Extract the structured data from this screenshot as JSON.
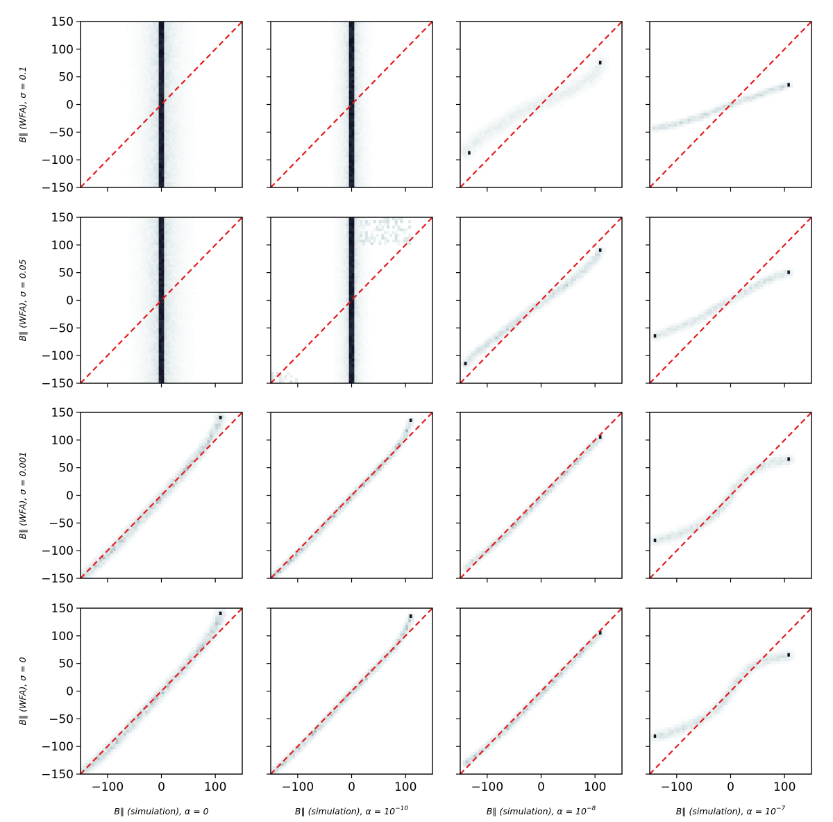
{
  "chart_data": {
    "type": "heatmap",
    "description_grid": "4x4 two-dimensional histograms with identity reference line",
    "x_range": [
      -150,
      150
    ],
    "y_range": [
      -150,
      150
    ],
    "x_ticks": [
      -100,
      0,
      100
    ],
    "y_ticks": [
      -150,
      -100,
      -50,
      0,
      50,
      100,
      150
    ],
    "x_tick_labels": [
      "−100",
      "0",
      "100"
    ],
    "y_tick_labels": [
      "−150",
      "−100",
      "−50",
      "0",
      "50",
      "100",
      "150"
    ],
    "reference_line": {
      "style": "dashed",
      "color": "#e41a1c",
      "from": [
        -150,
        -150
      ],
      "to": [
        150,
        150
      ]
    },
    "colormap": [
      "#ffffff",
      "#cfdde0",
      "#5f6e78",
      "#0a0a1e"
    ],
    "columns": [
      {
        "alpha_text": "0",
        "alpha_exp": "",
        "xlabel_prefix": "B∥ (simulation), α = "
      },
      {
        "alpha_text": "10",
        "alpha_exp": "−10",
        "xlabel_prefix": "B∥ (simulation), α = "
      },
      {
        "alpha_text": "10",
        "alpha_exp": "−8",
        "xlabel_prefix": "B∥ (simulation), α = "
      },
      {
        "alpha_text": "10",
        "alpha_exp": "−7",
        "xlabel_prefix": "B∥ (simulation), α = "
      }
    ],
    "rows": [
      {
        "ylabel": "B∥ (WFA), σ = 0.1"
      },
      {
        "ylabel": "B∥ (WFA), σ = 0.05"
      },
      {
        "ylabel": "B∥ (WFA), σ = 0.001"
      },
      {
        "ylabel": "B∥ (WFA), σ = 0"
      }
    ],
    "panels": [
      [
        {
          "kind": "vertical",
          "x": 0,
          "width": 5,
          "halo": 60,
          "density": 1.0
        },
        {
          "kind": "vertical",
          "x": 0,
          "width": 5,
          "halo": 35,
          "density": 1.0
        },
        {
          "kind": "curve",
          "points": [
            [
              -140,
              -85
            ],
            [
              -130,
              -75
            ],
            [
              -110,
              -58
            ],
            [
              -80,
              -40
            ],
            [
              -50,
              -20
            ],
            [
              -20,
              -5
            ],
            [
              0,
              3
            ],
            [
              20,
              10
            ],
            [
              50,
              25
            ],
            [
              80,
              40
            ],
            [
              100,
              55
            ],
            [
              110,
              75
            ]
          ],
          "spread": 9,
          "density": 0.35,
          "end_dots": [
            [
              -133,
              -88
            ],
            [
              110,
              75
            ]
          ]
        },
        {
          "kind": "curve",
          "points": [
            [
              -140,
              -43
            ],
            [
              -100,
              -35
            ],
            [
              -50,
              -20
            ],
            [
              -20,
              -7
            ],
            [
              0,
              0
            ],
            [
              20,
              7
            ],
            [
              50,
              16
            ],
            [
              80,
              27
            ],
            [
              108,
              35
            ]
          ],
          "spread": 4,
          "density": 0.7,
          "end_dots": [
            [
              108,
              35
            ]
          ]
        }
      ],
      [
        {
          "kind": "vertical",
          "x": 0,
          "width": 5,
          "halo": 60,
          "density": 1.0
        },
        {
          "kind": "vertical_scatter",
          "x": 0,
          "width": 5,
          "halo": 30,
          "density": 1.0,
          "scatter_boxes": [
            [
              -150,
              -100,
              -150,
              -130
            ],
            [
              0,
              110,
              100,
              150
            ]
          ]
        },
        {
          "kind": "curve",
          "points": [
            [
              -140,
              -115
            ],
            [
              -120,
              -95
            ],
            [
              -80,
              -65
            ],
            [
              -50,
              -42
            ],
            [
              -20,
              -18
            ],
            [
              0,
              -5
            ],
            [
              20,
              10
            ],
            [
              50,
              30
            ],
            [
              80,
              55
            ],
            [
              100,
              75
            ],
            [
              110,
              90
            ]
          ],
          "spread": 5,
          "density": 0.7,
          "end_dots": [
            [
              -140,
              -115
            ],
            [
              110,
              90
            ]
          ]
        },
        {
          "kind": "curve",
          "points": [
            [
              -140,
              -65
            ],
            [
              -100,
              -50
            ],
            [
              -60,
              -35
            ],
            [
              -30,
              -15
            ],
            [
              0,
              0
            ],
            [
              20,
              12
            ],
            [
              50,
              28
            ],
            [
              80,
              42
            ],
            [
              108,
              50
            ]
          ],
          "spread": 5,
          "density": 0.6,
          "end_dots": [
            [
              -140,
              -65
            ],
            [
              108,
              50
            ]
          ]
        }
      ],
      [
        {
          "kind": "curve",
          "points": [
            [
              -150,
              -150
            ],
            [
              -120,
              -125
            ],
            [
              -80,
              -88
            ],
            [
              -40,
              -45
            ],
            [
              0,
              -3
            ],
            [
              40,
              40
            ],
            [
              70,
              75
            ],
            [
              90,
              100
            ],
            [
              105,
              125
            ],
            [
              110,
              140
            ]
          ],
          "spread": 6,
          "density": 0.8,
          "end_dots": [
            [
              110,
              140
            ]
          ]
        },
        {
          "kind": "curve",
          "points": [
            [
              -150,
              -150
            ],
            [
              -110,
              -115
            ],
            [
              -60,
              -65
            ],
            [
              -20,
              -22
            ],
            [
              0,
              -2
            ],
            [
              40,
              38
            ],
            [
              80,
              80
            ],
            [
              100,
              110
            ],
            [
              110,
              135
            ]
          ],
          "spread": 4,
          "density": 0.85,
          "end_dots": [
            [
              110,
              135
            ]
          ]
        },
        {
          "kind": "curve",
          "points": [
            [
              -140,
              -130
            ],
            [
              -100,
              -100
            ],
            [
              -60,
              -65
            ],
            [
              -20,
              -25
            ],
            [
              0,
              -5
            ],
            [
              30,
              25
            ],
            [
              60,
              55
            ],
            [
              90,
              85
            ],
            [
              110,
              105
            ]
          ],
          "spread": 4,
          "density": 0.8,
          "end_dots": [
            [
              110,
              105
            ]
          ]
        },
        {
          "kind": "curve",
          "points": [
            [
              -140,
              -82
            ],
            [
              -100,
              -72
            ],
            [
              -60,
              -55
            ],
            [
              -30,
              -35
            ],
            [
              -10,
              -15
            ],
            [
              0,
              0
            ],
            [
              10,
              15
            ],
            [
              40,
              45
            ],
            [
              70,
              58
            ],
            [
              108,
              65
            ]
          ],
          "spread": 6,
          "density": 0.6,
          "end_dots": [
            [
              -140,
              -82
            ],
            [
              108,
              65
            ]
          ]
        }
      ],
      [
        {
          "kind": "curve",
          "points": [
            [
              -150,
              -150
            ],
            [
              -120,
              -125
            ],
            [
              -80,
              -88
            ],
            [
              -40,
              -45
            ],
            [
              0,
              -3
            ],
            [
              40,
              40
            ],
            [
              70,
              75
            ],
            [
              90,
              100
            ],
            [
              105,
              125
            ],
            [
              110,
              140
            ]
          ],
          "spread": 6,
          "density": 0.8,
          "end_dots": [
            [
              110,
              140
            ]
          ]
        },
        {
          "kind": "curve",
          "points": [
            [
              -150,
              -150
            ],
            [
              -110,
              -115
            ],
            [
              -60,
              -65
            ],
            [
              -20,
              -22
            ],
            [
              0,
              -2
            ],
            [
              40,
              38
            ],
            [
              80,
              80
            ],
            [
              100,
              110
            ],
            [
              110,
              135
            ]
          ],
          "spread": 4,
          "density": 0.85,
          "end_dots": [
            [
              110,
              135
            ]
          ]
        },
        {
          "kind": "curve",
          "points": [
            [
              -140,
              -130
            ],
            [
              -100,
              -100
            ],
            [
              -60,
              -65
            ],
            [
              -20,
              -25
            ],
            [
              0,
              -5
            ],
            [
              30,
              25
            ],
            [
              60,
              55
            ],
            [
              90,
              85
            ],
            [
              110,
              105
            ]
          ],
          "spread": 4,
          "density": 0.8,
          "end_dots": [
            [
              110,
              105
            ]
          ]
        },
        {
          "kind": "curve",
          "points": [
            [
              -140,
              -82
            ],
            [
              -100,
              -72
            ],
            [
              -60,
              -55
            ],
            [
              -30,
              -35
            ],
            [
              -10,
              -15
            ],
            [
              0,
              0
            ],
            [
              10,
              15
            ],
            [
              40,
              45
            ],
            [
              70,
              58
            ],
            [
              108,
              65
            ]
          ],
          "spread": 6,
          "density": 0.6,
          "end_dots": [
            [
              -140,
              -82
            ],
            [
              108,
              65
            ]
          ]
        }
      ]
    ]
  }
}
